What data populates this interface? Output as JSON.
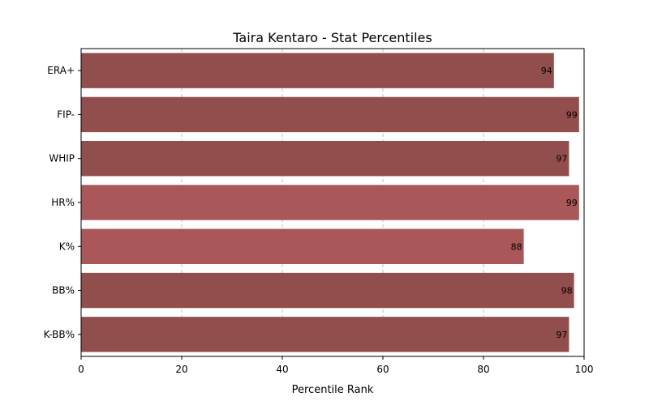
{
  "chart_data": {
    "type": "bar",
    "orientation": "horizontal",
    "title": "Taira Kentaro - Stat Percentiles",
    "xlabel": "Percentile Rank",
    "ylabel": "",
    "xlim": [
      0,
      100
    ],
    "x_ticks": [
      "0",
      "20",
      "40",
      "60",
      "80",
      "100"
    ],
    "grid": "vertical dashed",
    "categories": [
      "ERA+",
      "FIP-",
      "WHIP",
      "HR%",
      "K%",
      "BB%",
      "K-BB%"
    ],
    "values": [
      94,
      99,
      97,
      99,
      88,
      98,
      97
    ],
    "value_labels": [
      "94",
      "99",
      "97",
      "99",
      "88",
      "98",
      "97"
    ],
    "colors": [
      "#924e4d",
      "#924e4d",
      "#924e4d",
      "#a95758",
      "#a95758",
      "#924e4d",
      "#924e4d"
    ]
  }
}
